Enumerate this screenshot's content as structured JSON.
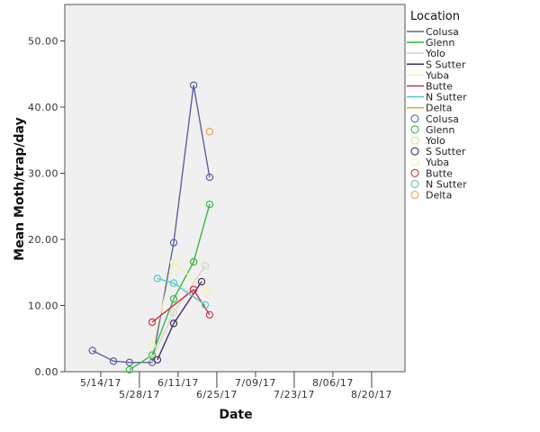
{
  "chart_data": {
    "type": "line",
    "title": "",
    "xlabel": "Date",
    "ylabel": "Mean Moth/trap/day",
    "x_units": "days since 5/01/17",
    "xlim": [
      0,
      123
    ],
    "ylim": [
      0,
      55
    ],
    "grid": false,
    "legend_position": "right",
    "legend_title": "Location",
    "x_ticks": [
      {
        "label": "5/14/17",
        "value": 13,
        "row": 0
      },
      {
        "label": "5/28/17",
        "value": 27,
        "row": 1
      },
      {
        "label": "6/11/17",
        "value": 41,
        "row": 0
      },
      {
        "label": "6/25/17",
        "value": 55,
        "row": 1
      },
      {
        "label": "7/09/17",
        "value": 69,
        "row": 0
      },
      {
        "label": "7/23/17",
        "value": 83,
        "row": 1
      },
      {
        "label": "8/06/17",
        "value": 97,
        "row": 0
      },
      {
        "label": "8/20/17",
        "value": 111,
        "row": 1
      }
    ],
    "y_ticks": [
      {
        "label": "0.00",
        "value": 0
      },
      {
        "label": "10.00",
        "value": 10
      },
      {
        "label": "20.00",
        "value": 20
      },
      {
        "label": "30.00",
        "value": 30
      },
      {
        "label": "40.00",
        "value": 40
      },
      {
        "label": "50.00",
        "value": 50
      }
    ],
    "series": [
      {
        "name": "Colusa",
        "color": "#5b62a0",
        "points": [
          [
            10,
            3.2
          ],
          [
            17.6,
            1.6
          ],
          [
            23.4,
            1.4
          ],
          [
            31.6,
            1.4
          ],
          [
            39.4,
            19.5
          ],
          [
            46.6,
            43.3
          ],
          [
            52.4,
            29.4
          ]
        ]
      },
      {
        "name": "Glenn",
        "color": "#3db54a",
        "points": [
          [
            23.4,
            0.3
          ],
          [
            31.6,
            2.5
          ],
          [
            39.4,
            11.0
          ],
          [
            46.6,
            16.6
          ],
          [
            52.4,
            25.3
          ]
        ]
      },
      {
        "name": "Yolo",
        "color": "#d5d8c2",
        "points": [
          [
            31.6,
            2.0
          ],
          [
            39.4,
            9.0
          ],
          [
            50.8,
            16.0
          ]
        ]
      },
      {
        "name": "S Sutter",
        "color": "#4a2f5e",
        "points": [
          [
            33.5,
            1.8
          ],
          [
            39.4,
            7.3
          ],
          [
            49.5,
            13.6
          ]
        ]
      },
      {
        "name": "Yuba",
        "color": "#f2f2b0",
        "points": [
          [
            31.6,
            4.0
          ],
          [
            39.4,
            16.5
          ],
          [
            52.4,
            12.0
          ]
        ]
      },
      {
        "name": "Butte",
        "color": "#c8334d",
        "points": [
          [
            31.6,
            7.5
          ],
          [
            46.6,
            12.4
          ],
          [
            52.4,
            8.6
          ]
        ]
      },
      {
        "name": "N Sutter",
        "color": "#5bc7c3",
        "points": [
          [
            33.5,
            14.1
          ],
          [
            39.4,
            13.4
          ],
          [
            50.8,
            10.1
          ]
        ]
      },
      {
        "name": "Delta",
        "color": "#e6a350",
        "points": [
          [
            52.4,
            36.3
          ]
        ]
      }
    ]
  },
  "legend": {
    "title": "Location",
    "line_items": [
      {
        "label": "Colusa",
        "color": "#5b62a0"
      },
      {
        "label": "Glenn",
        "color": "#3db54a"
      },
      {
        "label": "Yolo",
        "color": "#d5d8c2"
      },
      {
        "label": "S Sutter",
        "color": "#4a2f5e"
      },
      {
        "label": "Yuba",
        "color": "#f2f2b0"
      },
      {
        "label": "Butte",
        "color": "#c8334d"
      },
      {
        "label": "N Sutter",
        "color": "#5bc7c3"
      },
      {
        "label": "Delta",
        "color": "#e6a350"
      }
    ],
    "marker_items": [
      {
        "label": "Colusa",
        "color": "#5b62a0"
      },
      {
        "label": "Glenn",
        "color": "#3db54a"
      },
      {
        "label": "Yolo",
        "color": "#d5d8c2"
      },
      {
        "label": "S Sutter",
        "color": "#4a2f5e"
      },
      {
        "label": "Yuba",
        "color": "#f2f2b0"
      },
      {
        "label": "Butte",
        "color": "#c8334d"
      },
      {
        "label": "N Sutter",
        "color": "#5bc7c3"
      },
      {
        "label": "Delta",
        "color": "#e6a350"
      }
    ]
  },
  "colors": {
    "plot_background": "#f0f0f0",
    "axis": "#444444"
  }
}
